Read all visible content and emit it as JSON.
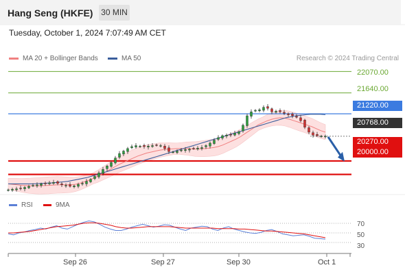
{
  "header": {
    "title": "Hang Seng (HKFE)",
    "interval": "30 MIN"
  },
  "datetime": "Tuesday, October 1, 2024 7:07:49 AM CET",
  "legend": {
    "ma20_label": "MA 20 + Bollinger Bands",
    "ma50_label": "MA 50",
    "ma20_color": "#f08080",
    "ma50_color": "#3a5e9c"
  },
  "research": "Research © 2024 Trading Central",
  "lower_legend": {
    "rsi_label": "RSI",
    "ma_label": "9MA",
    "rsi_color": "#5b7fd6",
    "ma_color": "#e01010"
  },
  "levels": {
    "r2": "22070.00",
    "r1": "21640.00",
    "pivot": "21220.00",
    "last": "20768.00",
    "s1": "20270.00",
    "s2": "20000.00"
  },
  "colors": {
    "resistance": "#6aa832",
    "pivot": "#3b7be0",
    "support": "#e01010",
    "last": "#333333",
    "candle_up": "#2e9e3e",
    "candle_down": "#d03030",
    "band_fill": "#fde0e0"
  },
  "rsi_ticks": [
    "70",
    "50",
    "30"
  ],
  "x_ticks": [
    "Sep 26",
    "Sep 27",
    "Sep 30",
    "Oct 1"
  ],
  "chart_data": {
    "type": "candlestick",
    "ylim": [
      19650,
      22200
    ],
    "rsi_ylim": [
      10,
      90
    ],
    "closes": [
      19690,
      19700,
      19710,
      19720,
      19740,
      19760,
      19780,
      19790,
      19810,
      19820,
      19830,
      19840,
      19820,
      19790,
      19780,
      19760,
      19770,
      19800,
      19820,
      19860,
      19900,
      19960,
      20030,
      20100,
      20170,
      20240,
      20330,
      20420,
      20470,
      20520,
      20560,
      20580,
      20570,
      20560,
      20570,
      20580,
      20590,
      20580,
      20520,
      20460,
      20450,
      20470,
      20490,
      20500,
      20510,
      20520,
      20530,
      20540,
      20580,
      20630,
      20690,
      20740,
      20780,
      20790,
      20800,
      20830,
      20860,
      20990,
      21180,
      21260,
      21290,
      21300,
      21350,
      21330,
      21260,
      21270,
      21260,
      21230,
      21200,
      21180,
      21150,
      21080,
      20950,
      20850,
      20790,
      20780,
      20770,
      20768
    ],
    "ma20": [
      19810,
      19800,
      19790,
      19780,
      19775,
      19770,
      19770,
      19770,
      19775,
      19780,
      19785,
      19790,
      19790,
      19790,
      19790,
      19800,
      19820,
      19850,
      19880,
      19920,
      19960,
      20010,
      20060,
      20110,
      20160,
      20210,
      20250,
      20290,
      20330,
      20370,
      20400,
      20430,
      20450,
      20470,
      20490,
      20500,
      20510,
      20515,
      20520,
      20520,
      20520,
      20515,
      20510,
      20515,
      20520,
      20530,
      20540,
      20560,
      20590,
      20630,
      20670,
      20710,
      20760,
      20820,
      20880,
      20940,
      21000,
      21040,
      21080,
      21110,
      21130,
      21140,
      21130,
      21110,
      21080,
      21050,
      21020,
      20990,
      20960,
      20920,
      20880,
      20850
    ],
    "ma50": [
      19810,
      19810,
      19810,
      19810,
      19810,
      19810,
      19815,
      19820,
      19825,
      19830,
      19840,
      19850,
      19860,
      19880,
      19900,
      19920,
      19940,
      19970,
      20000,
      20030,
      20060,
      20090,
      20120,
      20150,
      20180,
      20210,
      20240,
      20270,
      20300,
      20330,
      20360,
      20390,
      20420,
      20450,
      20480,
      20510,
      20540,
      20570,
      20600,
      20630,
      20660,
      20690,
      20720,
      20750,
      20780,
      20810,
      20840,
      20870,
      20900,
      20930,
      20960,
      20990,
      21020,
      21050,
      21080,
      21110,
      21140,
      21160,
      21180,
      21190,
      21200,
      21210,
      21210,
      21210,
      21200
    ],
    "rsi": [
      48,
      46,
      50,
      52,
      55,
      57,
      60,
      58,
      62,
      65,
      60,
      58,
      63,
      68,
      72,
      75,
      73,
      68,
      62,
      58,
      55,
      55,
      58,
      62,
      65,
      68,
      65,
      62,
      64,
      67,
      66,
      62,
      58,
      55,
      60,
      62,
      64,
      63,
      58,
      55,
      60,
      63,
      58,
      55,
      52,
      50,
      49,
      51,
      55,
      57,
      53,
      48,
      46,
      44,
      45,
      46,
      43,
      39,
      38,
      37
    ],
    "rsi_ma": [
      50,
      50,
      51,
      52,
      53,
      55,
      57,
      59,
      61,
      63,
      64,
      65,
      66,
      68,
      70,
      71,
      71,
      70,
      68,
      66,
      63,
      61,
      60,
      60,
      61,
      62,
      63,
      63,
      63,
      63,
      63,
      62,
      61,
      60,
      60,
      60,
      60,
      60,
      60,
      59,
      59,
      59,
      59,
      58,
      58,
      57,
      56,
      55,
      54,
      54,
      53,
      52,
      51,
      50,
      49,
      48,
      46,
      44,
      42,
      40
    ]
  }
}
